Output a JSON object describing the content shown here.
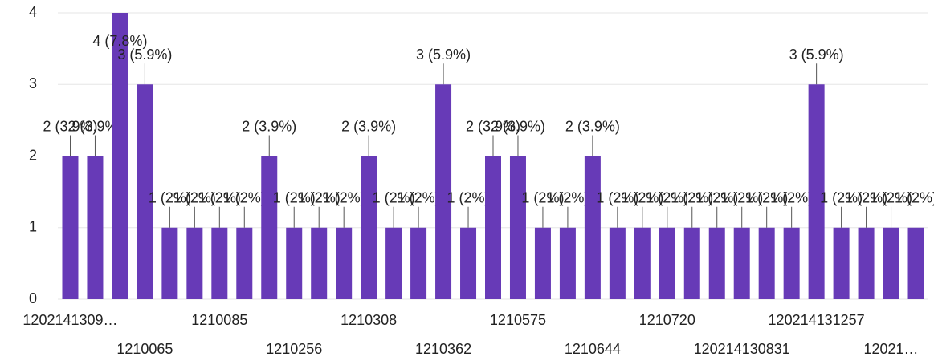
{
  "chart_data": {
    "type": "bar",
    "categories": [
      "1202141309…",
      null,
      null,
      "1210065",
      null,
      null,
      "1210085",
      null,
      null,
      "1210256",
      null,
      null,
      "1210308",
      null,
      null,
      "1210362",
      null,
      null,
      "1210575",
      null,
      null,
      "1210644",
      null,
      null,
      "1210720",
      null,
      null,
      "120214130831",
      null,
      null,
      "120214131257",
      null,
      null,
      "12021…",
      null
    ],
    "values": [
      2,
      2,
      4,
      3,
      1,
      1,
      1,
      1,
      2,
      1,
      1,
      1,
      2,
      1,
      1,
      3,
      1,
      2,
      2,
      1,
      1,
      2,
      1,
      1,
      1,
      1,
      1,
      1,
      1,
      1,
      3,
      1,
      1,
      1,
      1
    ],
    "value_labels": [
      "2 (3.9%)",
      "2 (3.9%)",
      "4 (7.8%)",
      "3 (5.9%)",
      "1 (2%)",
      "1 (2%)",
      "1 (2%)",
      "1 (2%)",
      "2 (3.9%)",
      "1 (2%)",
      "1 (2%)",
      "1 (2%)",
      "2 (3.9%)",
      "1 (2%)",
      "1 (2%)",
      "3 (5.9%)",
      "1 (2%)",
      "2 (3.9%)",
      "2 (3.9%)",
      "1 (2%)",
      "1 (2%)",
      "2 (3.9%)",
      "1 (2%)",
      "1 (2%)",
      "1 (2%)",
      "1 (2%)",
      "1 (2%)",
      "1 (2%)",
      "1 (2%)",
      "1 (2%)",
      "3 (5.9%)",
      "1 (2%)",
      "1 (2%)",
      "1 (2%)",
      "1 (2%)"
    ],
    "color": "#673ab7",
    "ylim": [
      0,
      4
    ],
    "yticks": [
      0,
      1,
      2,
      3,
      4
    ],
    "grid": true
  }
}
